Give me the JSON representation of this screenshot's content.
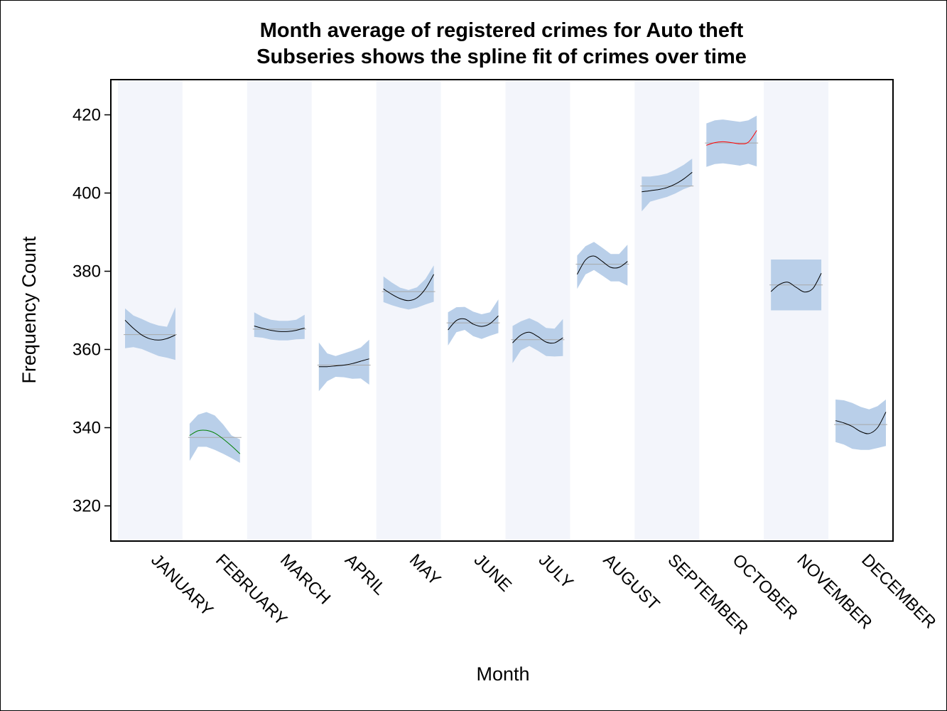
{
  "chart_data": {
    "type": "area",
    "title": "Month average of registered crimes for Auto theft",
    "subtitle": "Subseries shows the spline fit of crimes over time",
    "xlabel": "Month",
    "ylabel": "Frequency Count",
    "ylim": [
      311,
      429
    ],
    "yticks": [
      320,
      340,
      360,
      380,
      400,
      420
    ],
    "categories": [
      "JANUARY",
      "FEBRUARY",
      "MARCH",
      "APRIL",
      "MAY",
      "JUNE",
      "JULY",
      "AUGUST",
      "SEPTEMBER",
      "OCTOBER",
      "NOVEMBER",
      "DECEMBER"
    ],
    "grid": false,
    "legend": "none",
    "colors": {
      "band": "#b9cfe9",
      "stripe": "#f3f5fb",
      "mean": "#a9a9a9",
      "spline_default": "#000000",
      "spline_low": "#008000",
      "spline_high": "#ff0000"
    },
    "months": [
      {
        "mean": 363.8,
        "spline": [
          367.5,
          365.4,
          363.7,
          362.7,
          362.4,
          362.8,
          363.7
        ],
        "upper": [
          370.5,
          368.7,
          367.8,
          366.8,
          366.1,
          365.8,
          370.8
        ],
        "lower": [
          360.3,
          360.6,
          360.1,
          359.2,
          358.3,
          357.9,
          357.3
        ],
        "spline_color": "#000000"
      },
      {
        "mean": 337.5,
        "spline": [
          338.0,
          339.2,
          339.3,
          338.6,
          337.1,
          335.3,
          333.3
        ],
        "upper": [
          341.0,
          343.3,
          344.0,
          343.1,
          340.8,
          338.0,
          337.0
        ],
        "lower": [
          331.5,
          335.1,
          335.1,
          334.3,
          333.3,
          332.2,
          331.0
        ],
        "spline_color": "#008000"
      },
      {
        "mean": 365.2,
        "spline": [
          366.0,
          365.4,
          364.9,
          364.6,
          364.6,
          364.9,
          365.5
        ],
        "upper": [
          369.5,
          368.3,
          367.6,
          367.3,
          367.3,
          367.6,
          368.9
        ],
        "lower": [
          363.2,
          363.0,
          362.5,
          362.3,
          362.3,
          362.6,
          362.7
        ],
        "spline_color": "#000000"
      },
      {
        "mean": 356.0,
        "spline": [
          355.6,
          355.6,
          355.8,
          356.0,
          356.4,
          357.0,
          357.6
        ],
        "upper": [
          361.8,
          359.0,
          358.3,
          359.0,
          359.7,
          360.5,
          362.5
        ],
        "lower": [
          349.3,
          351.9,
          353.0,
          352.9,
          352.5,
          352.6,
          351.0
        ],
        "spline_color": "#000000"
      },
      {
        "mean": 374.8,
        "spline": [
          375.5,
          374.1,
          373.0,
          372.5,
          373.2,
          375.5,
          379.2
        ],
        "upper": [
          378.7,
          377.1,
          375.8,
          375.2,
          375.9,
          378.0,
          381.5
        ],
        "lower": [
          372.1,
          371.3,
          370.7,
          370.2,
          370.7,
          371.5,
          372.2
        ],
        "spline_color": "#000000"
      },
      {
        "mean": 366.8,
        "spline": [
          365.0,
          367.4,
          367.8,
          366.5,
          365.9,
          366.6,
          368.6
        ],
        "upper": [
          369.5,
          370.8,
          370.9,
          369.7,
          369.0,
          369.5,
          372.8
        ],
        "lower": [
          361.0,
          364.4,
          365.0,
          363.4,
          362.7,
          363.5,
          364.2
        ],
        "spline_color": "#000000"
      },
      {
        "mean": 362.5,
        "spline": [
          361.7,
          363.7,
          364.4,
          363.3,
          361.9,
          361.7,
          363.0
        ],
        "upper": [
          366.0,
          367.2,
          368.0,
          367.0,
          365.5,
          365.3,
          367.8
        ],
        "lower": [
          356.5,
          359.8,
          360.9,
          359.7,
          358.3,
          358.2,
          358.3
        ],
        "spline_color": "#000000"
      },
      {
        "mean": 381.8,
        "spline": [
          379.2,
          382.9,
          383.9,
          382.5,
          381.0,
          381.0,
          382.5
        ],
        "upper": [
          384.0,
          386.4,
          387.5,
          386.0,
          384.4,
          384.4,
          386.8
        ],
        "lower": [
          375.5,
          379.2,
          380.3,
          378.9,
          377.4,
          377.4,
          376.3
        ],
        "spline_color": "#000000"
      },
      {
        "mean": 401.8,
        "spline": [
          400.3,
          400.6,
          400.9,
          401.4,
          402.3,
          403.6,
          405.3
        ],
        "upper": [
          404.2,
          404.2,
          404.5,
          405.0,
          406.0,
          407.2,
          408.8
        ],
        "lower": [
          395.3,
          397.8,
          398.4,
          399.0,
          399.9,
          401.0,
          401.8
        ],
        "spline_color": "#000000"
      },
      {
        "mean": 412.8,
        "spline": [
          412.2,
          412.9,
          413.1,
          412.9,
          412.6,
          413.0,
          416.0
        ],
        "upper": [
          417.8,
          418.6,
          418.8,
          418.5,
          418.2,
          418.6,
          419.8
        ],
        "lower": [
          406.7,
          407.4,
          407.6,
          407.3,
          407.0,
          407.5,
          406.8
        ],
        "spline_color": "#ff0000"
      },
      {
        "mean": 376.5,
        "spline": [
          374.8,
          376.6,
          377.2,
          375.9,
          374.7,
          375.6,
          379.5
        ],
        "upper": [
          383.0,
          383.0,
          383.0,
          383.0,
          383.0,
          383.0,
          383.0
        ],
        "lower": [
          370.0,
          370.0,
          370.0,
          370.0,
          370.0,
          370.0,
          370.0
        ],
        "spline_color": "#000000"
      },
      {
        "mean": 340.8,
        "spline": [
          341.8,
          341.2,
          340.3,
          339.0,
          338.5,
          340.0,
          344.0
        ],
        "upper": [
          347.2,
          347.0,
          346.3,
          345.3,
          344.7,
          345.5,
          347.2
        ],
        "lower": [
          336.3,
          335.7,
          334.6,
          334.3,
          334.3,
          334.8,
          335.3
        ],
        "spline_color": "#000000"
      }
    ]
  }
}
